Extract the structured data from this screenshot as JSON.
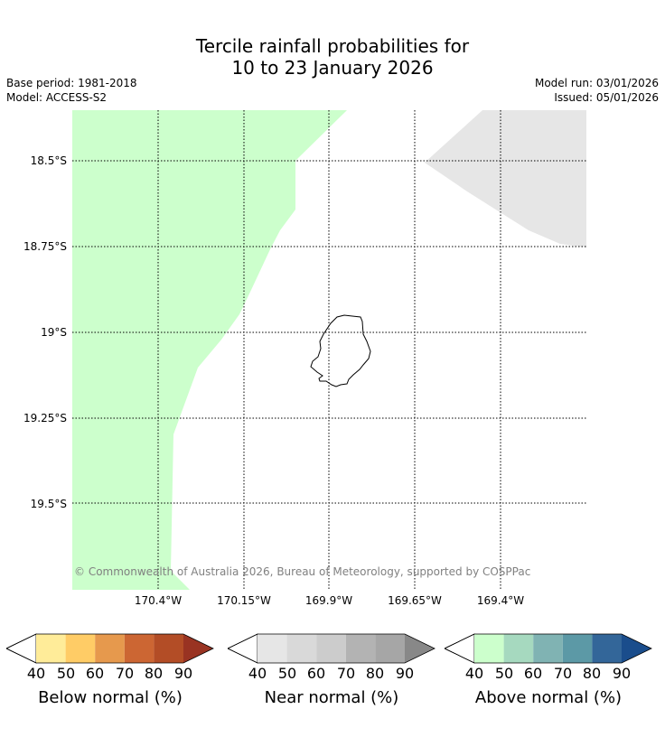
{
  "title_line1": "Tercile rainfall probabilities for",
  "title_line2": "10 to 23 January 2026",
  "base_period": "Base period: 1981-2018",
  "model": "Model: ACCESS-S2",
  "model_run": "Model run: 03/01/2026",
  "issued": "Issued: 05/01/2026",
  "lat_labels": [
    "18.5°S",
    "18.75°S",
    "19°S",
    "19.25°S",
    "19.5°S"
  ],
  "lon_labels": [
    "170.4°W",
    "170.15°W",
    "169.9°W",
    "169.65°W",
    "169.4°W"
  ],
  "copyright": "© Commonwealth of Australia 2026, Bureau of Meteorology, supported by COSPPac",
  "map_regions": [
    {
      "category": "above-normal",
      "level": "40-50",
      "color": "#ccffcc"
    },
    {
      "category": "near-normal",
      "level": "40-50",
      "color": "#e6e6e6"
    }
  ],
  "colorbars": [
    {
      "title": "Below normal (%)",
      "ticks": [
        "40",
        "50",
        "60",
        "70",
        "80",
        "90"
      ],
      "colors": [
        "#ffec99",
        "#ffcc66",
        "#e6994d",
        "#cc6633",
        "#b34d26"
      ],
      "extend_color": "#993322"
    },
    {
      "title": "Near normal (%)",
      "ticks": [
        "40",
        "50",
        "60",
        "70",
        "80",
        "90"
      ],
      "colors": [
        "#e6e6e6",
        "#d9d9d9",
        "#cccccc",
        "#b3b3b3",
        "#a6a6a6"
      ],
      "extend_color": "#888888"
    },
    {
      "title": "Above normal (%)",
      "ticks": [
        "40",
        "50",
        "60",
        "70",
        "80",
        "90"
      ],
      "colors": [
        "#ccffcc",
        "#a6d9bf",
        "#80b3b3",
        "#5c99a6",
        "#336699"
      ],
      "extend_color": "#1a4d8c"
    }
  ]
}
